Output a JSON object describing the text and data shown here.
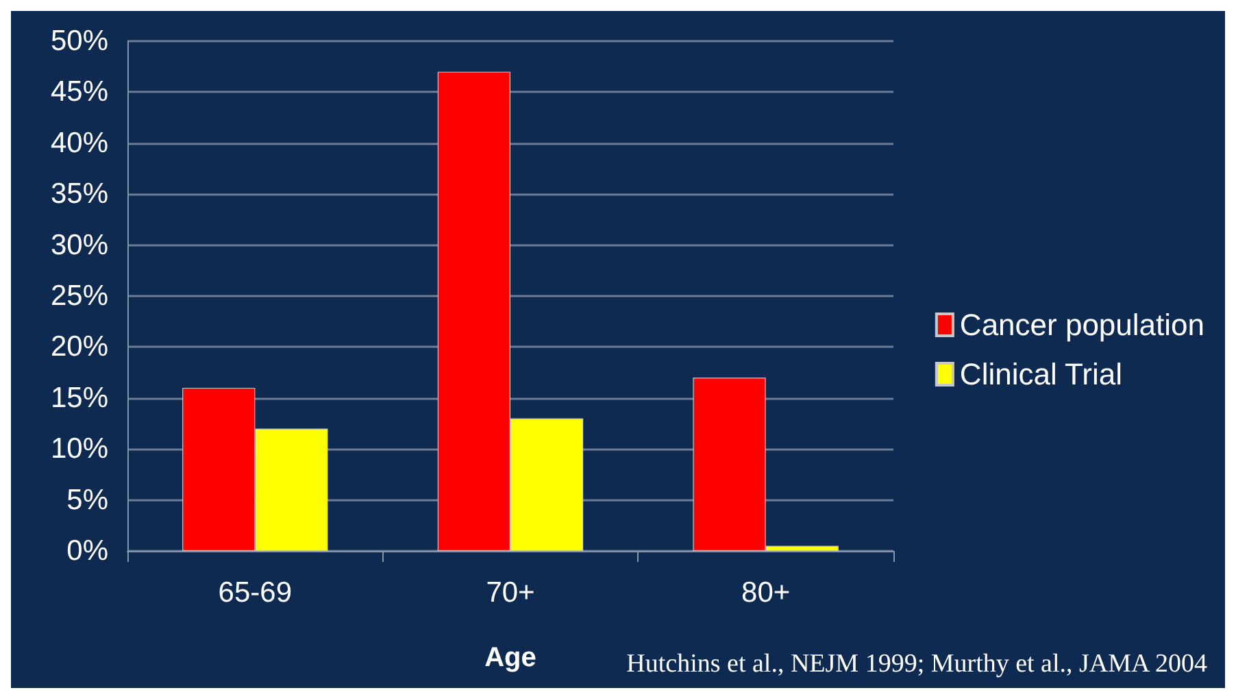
{
  "chart_data": {
    "type": "bar",
    "xlabel": "Age",
    "categories": [
      "65-69",
      "70+",
      "80+"
    ],
    "series": [
      {
        "name": "Cancer population",
        "color": "#ff0000",
        "values": [
          16,
          47,
          17
        ]
      },
      {
        "name": "Clinical Trial",
        "color": "#ffff00",
        "values": [
          12,
          13,
          0.5
        ]
      }
    ],
    "ylim": [
      0,
      50
    ],
    "yticks": [
      {
        "value": 0,
        "label": "0%"
      },
      {
        "value": 5,
        "label": "5%"
      },
      {
        "value": 10,
        "label": "10%"
      },
      {
        "value": 15,
        "label": "15%"
      },
      {
        "value": 20,
        "label": "20%"
      },
      {
        "value": 25,
        "label": "25%"
      },
      {
        "value": 30,
        "label": "30%"
      },
      {
        "value": 35,
        "label": "35%"
      },
      {
        "value": 40,
        "label": "40%"
      },
      {
        "value": 45,
        "label": "45%"
      },
      {
        "value": 50,
        "label": "50%"
      }
    ],
    "grid": "y",
    "legend": "right",
    "annotations": [
      "Hutchins et al., NEJM 1999; Murthy et al., JAMA 2004"
    ]
  }
}
